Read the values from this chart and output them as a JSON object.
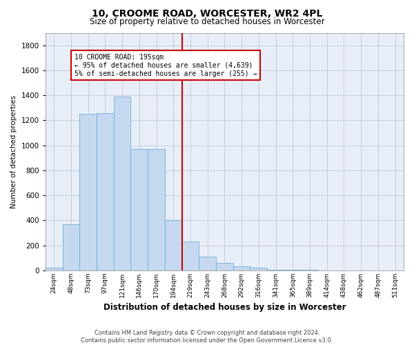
{
  "title": "10, CROOME ROAD, WORCESTER, WR2 4PL",
  "subtitle": "Size of property relative to detached houses in Worcester",
  "xlabel": "Distribution of detached houses by size in Worcester",
  "ylabel": "Number of detached properties",
  "bar_color": "#c5d8f0",
  "bar_edge_color": "#6baed6",
  "annotation_line_color": "#cc0000",
  "annotation_box_color": "#cc0000",
  "annotation_text": [
    "10 CROOME ROAD: 195sqm",
    "← 95% of detached houses are smaller (4,639)",
    "5% of semi-detached houses are larger (255) →"
  ],
  "categories": [
    "24sqm",
    "48sqm",
    "73sqm",
    "97sqm",
    "121sqm",
    "146sqm",
    "170sqm",
    "194sqm",
    "219sqm",
    "243sqm",
    "268sqm",
    "292sqm",
    "316sqm",
    "341sqm",
    "365sqm",
    "389sqm",
    "414sqm",
    "438sqm",
    "462sqm",
    "487sqm",
    "511sqm"
  ],
  "values": [
    20,
    370,
    1250,
    1260,
    1390,
    970,
    970,
    405,
    230,
    110,
    60,
    35,
    20,
    5,
    5,
    3,
    1,
    1,
    1,
    1,
    1
  ],
  "ylim": [
    0,
    1900
  ],
  "yticks": [
    0,
    200,
    400,
    600,
    800,
    1000,
    1200,
    1400,
    1600,
    1800
  ],
  "grid_color": "#c0c8d8",
  "background_color": "#e8eef8",
  "footer_line1": "Contains HM Land Registry data © Crown copyright and database right 2024.",
  "footer_line2": "Contains public sector information licensed under the Open Government Licence v3.0."
}
